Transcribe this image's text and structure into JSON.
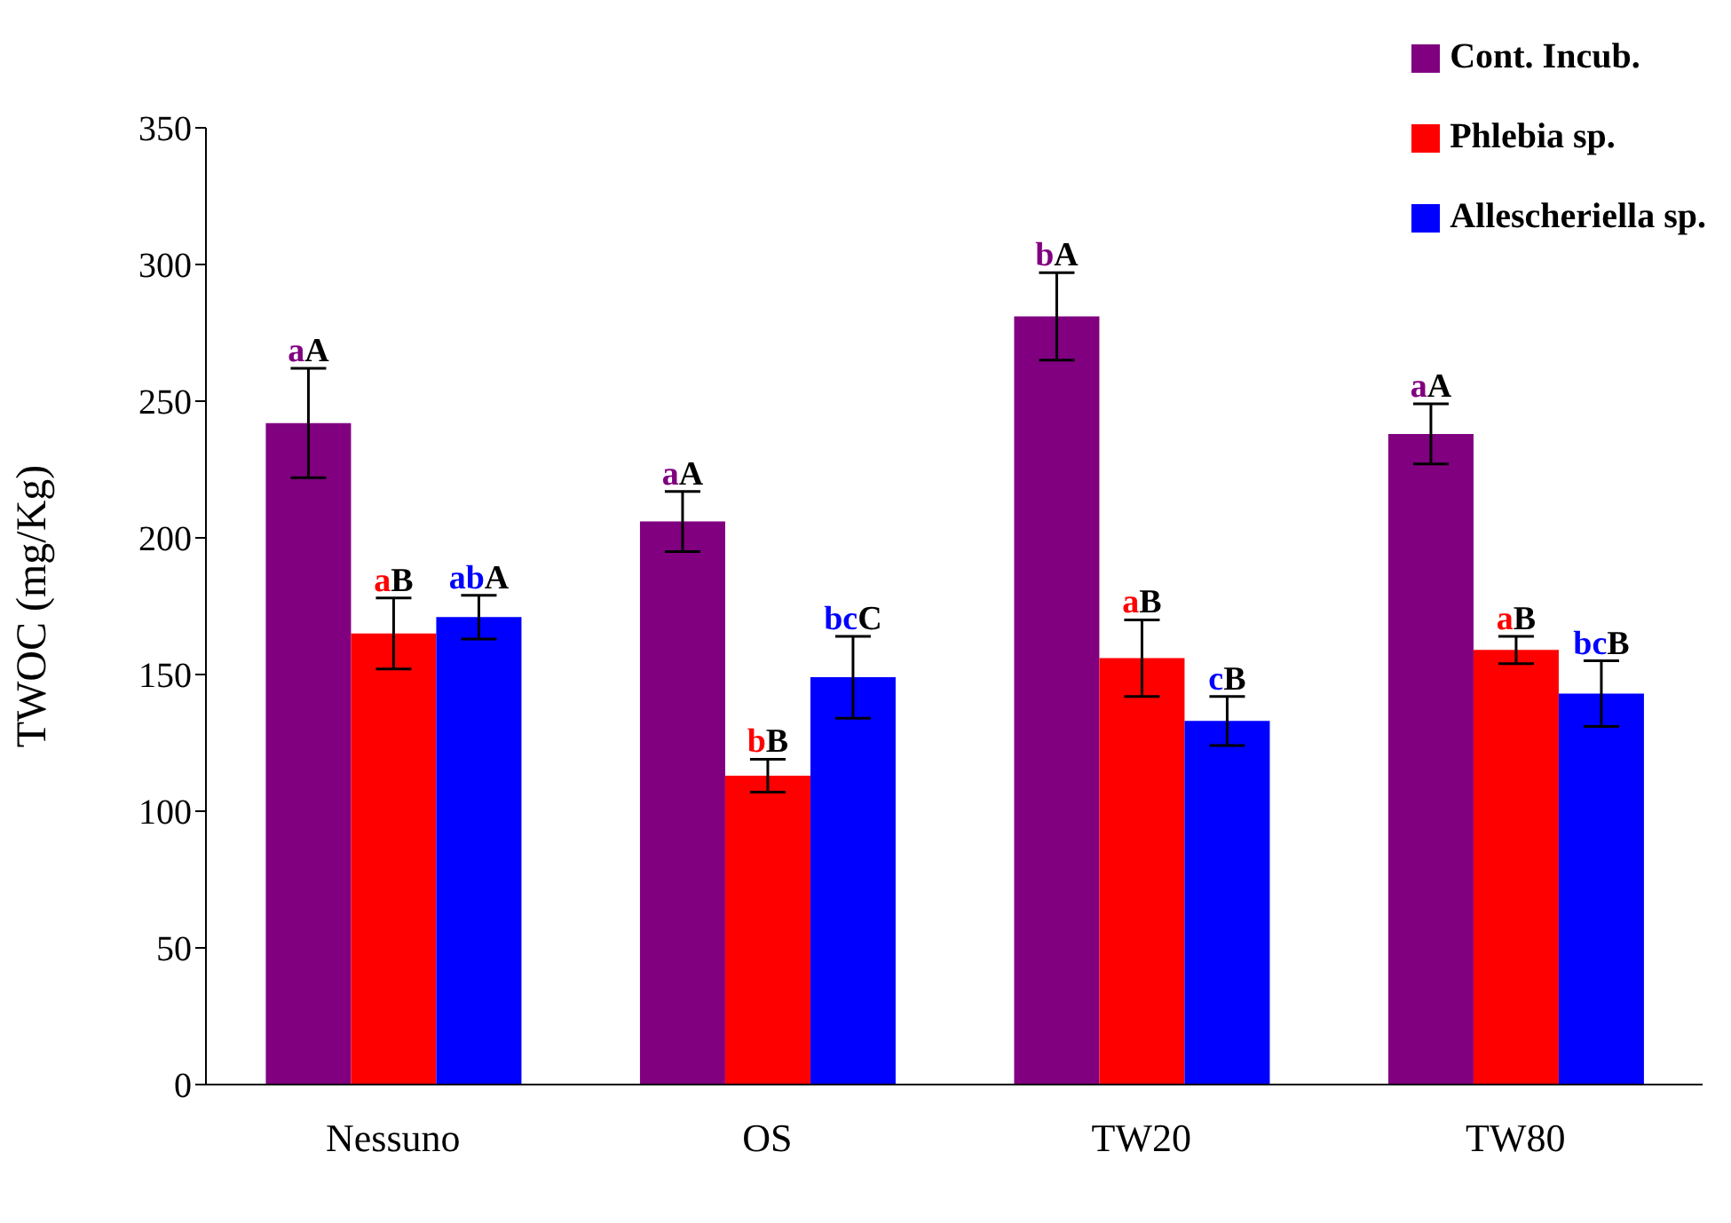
{
  "chart_data": {
    "type": "bar",
    "ylabel": "TWOC (mg/Kg)",
    "categories": [
      "Nessuno",
      "OS",
      "TW20",
      "TW80"
    ],
    "series": [
      {
        "name": "Cont. Incub.",
        "color": "#800080",
        "values": [
          242,
          206,
          281,
          238
        ],
        "errors": [
          20,
          11,
          16,
          11
        ],
        "value_labels": [
          "aA",
          "aA",
          "bA",
          "aA"
        ]
      },
      {
        "name": "Phlebia sp.",
        "color": "#ff0000",
        "values": [
          165,
          113,
          156,
          159
        ],
        "errors": [
          13,
          6,
          14,
          5
        ],
        "value_labels": [
          "aB",
          "bB",
          "aB",
          "aB"
        ]
      },
      {
        "name": "Allescheriella sp.",
        "color": "#0000ff",
        "values": [
          171,
          149,
          133,
          143
        ],
        "errors": [
          8,
          15,
          9,
          12
        ],
        "value_labels": [
          "abA",
          "bcC",
          "cB",
          "bcB"
        ]
      }
    ],
    "ylim": [
      0,
      350
    ],
    "yticks": [
      0,
      50,
      100,
      150,
      200,
      250,
      300,
      350
    ],
    "grid": false,
    "legend": "top right"
  }
}
